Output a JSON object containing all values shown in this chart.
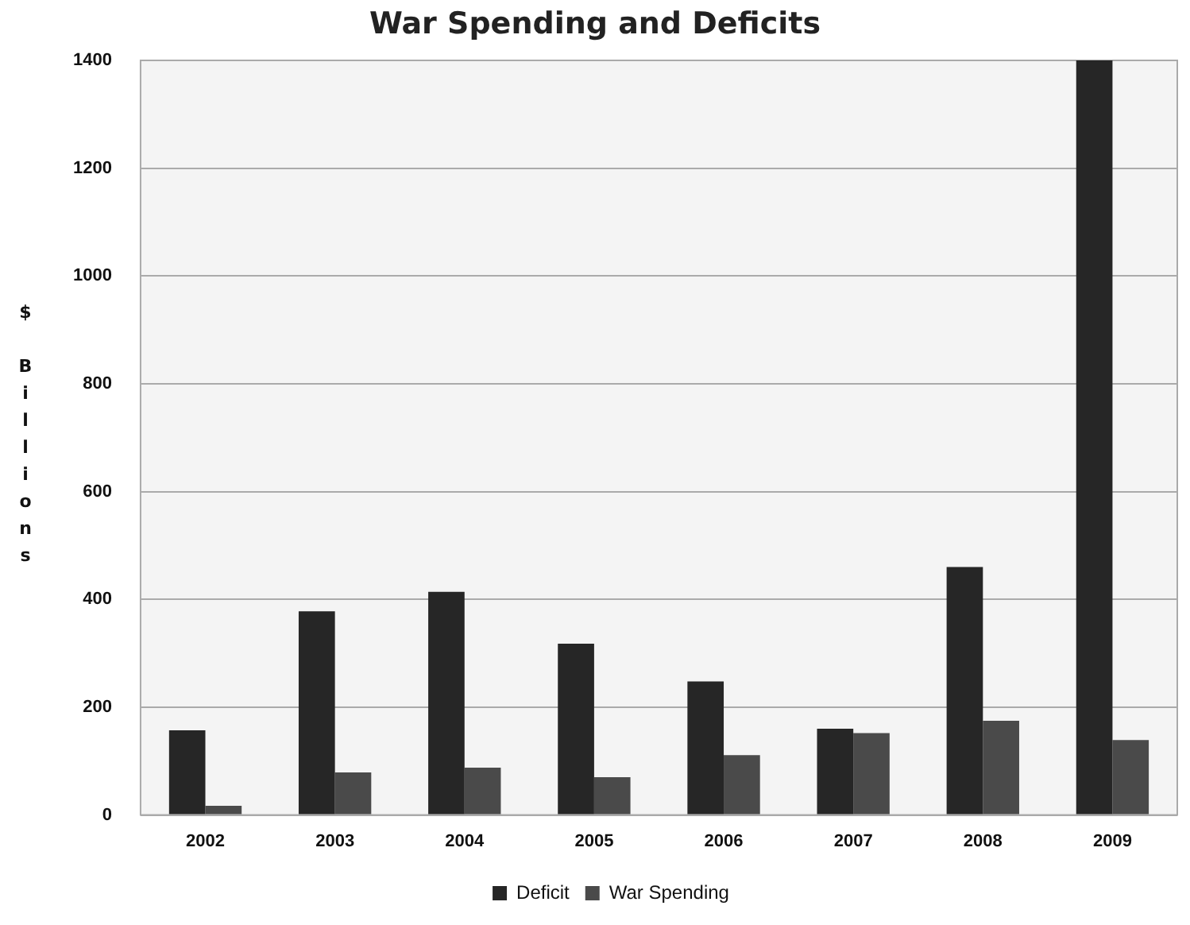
{
  "chart_data": {
    "type": "bar",
    "title": "War Spending and Deficits",
    "ylabel": "$ Billions",
    "categories": [
      "2002",
      "2003",
      "2004",
      "2005",
      "2006",
      "2007",
      "2008",
      "2009"
    ],
    "series": [
      {
        "name": "Deficit",
        "color": "#262626",
        "values": [
          157,
          378,
          414,
          318,
          248,
          160,
          460,
          1400
        ]
      },
      {
        "name": "War Spending",
        "color": "#4a4a4a",
        "values": [
          17,
          79,
          88,
          70,
          111,
          152,
          175,
          139
        ]
      }
    ],
    "ylim": [
      0,
      1400
    ],
    "yticks": [
      0,
      200,
      400,
      600,
      800,
      1000,
      1200,
      1400
    ],
    "grid": "y",
    "legend": "bottom"
  }
}
